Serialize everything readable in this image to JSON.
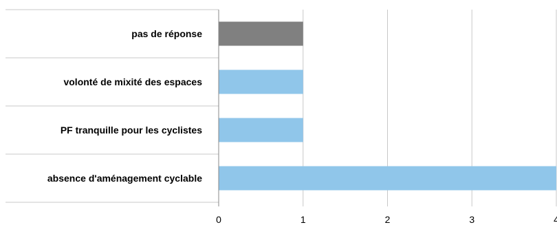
{
  "chart_data": {
    "type": "bar",
    "orientation": "horizontal",
    "title": "",
    "xlabel": "",
    "ylabel": "",
    "categories": [
      "pas de réponse",
      "volonté de mixité des espaces",
      "PF tranquille pour les cyclistes",
      "absence d'aménagement cyclable"
    ],
    "values": [
      1,
      1,
      1,
      4
    ],
    "bar_colors": [
      "#808080",
      "#90c6ea",
      "#90c6ea",
      "#90c6ea"
    ],
    "xlim": [
      0,
      4
    ],
    "x_ticks": [
      "0",
      "1",
      "2",
      "3",
      "4"
    ],
    "grid": true,
    "legend": "none"
  }
}
